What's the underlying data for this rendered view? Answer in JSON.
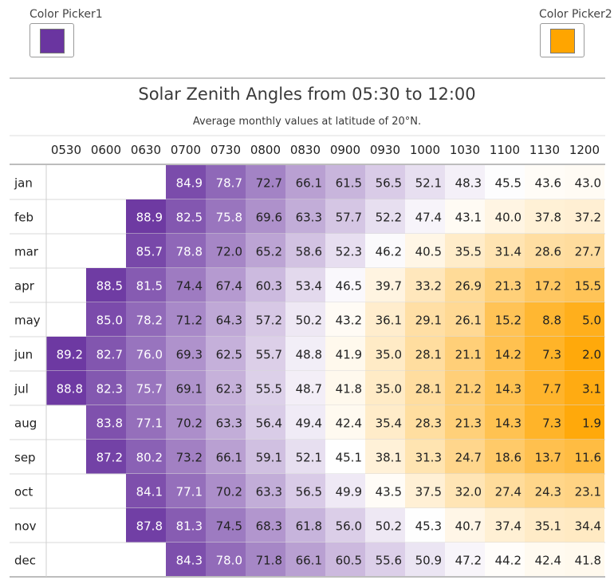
{
  "pickers": [
    {
      "label": "Color Picker1",
      "color": "#6a35a0"
    },
    {
      "label": "Color Picker2",
      "color": "#ffa500"
    }
  ],
  "chart_data": {
    "type": "heatmap",
    "title": "Solar Zenith Angles from 05:30 to 12:00",
    "subtitle": "Average monthly values at latitude of 20°N.",
    "columns": [
      "0530",
      "0600",
      "0630",
      "0700",
      "0730",
      "0800",
      "0830",
      "0900",
      "0930",
      "1000",
      "1030",
      "1100",
      "1130",
      "1200"
    ],
    "rows": [
      "jan",
      "feb",
      "mar",
      "apr",
      "may",
      "jun",
      "jul",
      "aug",
      "sep",
      "oct",
      "nov",
      "dec"
    ],
    "values": [
      [
        null,
        null,
        null,
        84.9,
        78.7,
        72.7,
        66.1,
        61.5,
        56.5,
        52.1,
        48.3,
        45.5,
        43.6,
        43.0
      ],
      [
        null,
        null,
        88.9,
        82.5,
        75.8,
        69.6,
        63.3,
        57.7,
        52.2,
        47.4,
        43.1,
        40.0,
        37.8,
        37.2
      ],
      [
        null,
        null,
        85.7,
        78.8,
        72.0,
        65.2,
        58.6,
        52.3,
        46.2,
        40.5,
        35.5,
        31.4,
        28.6,
        27.7
      ],
      [
        null,
        88.5,
        81.5,
        74.4,
        67.4,
        60.3,
        53.4,
        46.5,
        39.7,
        33.2,
        26.9,
        21.3,
        17.2,
        15.5
      ],
      [
        null,
        85.0,
        78.2,
        71.2,
        64.3,
        57.2,
        50.2,
        43.2,
        36.1,
        29.1,
        26.1,
        15.2,
        8.8,
        5.0
      ],
      [
        89.2,
        82.7,
        76.0,
        69.3,
        62.5,
        55.7,
        48.8,
        41.9,
        35.0,
        28.1,
        21.1,
        14.2,
        7.3,
        2.0
      ],
      [
        88.8,
        82.3,
        75.7,
        69.1,
        62.3,
        55.5,
        48.7,
        41.8,
        35.0,
        28.1,
        21.2,
        14.3,
        7.7,
        3.1
      ],
      [
        null,
        83.8,
        77.1,
        70.2,
        63.3,
        56.4,
        49.4,
        42.4,
        35.4,
        28.3,
        21.3,
        14.3,
        7.3,
        1.9
      ],
      [
        null,
        87.2,
        80.2,
        73.2,
        66.1,
        59.1,
        52.1,
        45.1,
        38.1,
        31.3,
        24.7,
        18.6,
        13.7,
        11.6
      ],
      [
        null,
        null,
        84.1,
        77.1,
        70.2,
        63.3,
        56.5,
        49.9,
        43.5,
        37.5,
        32.0,
        27.4,
        24.3,
        23.1
      ],
      [
        null,
        null,
        87.8,
        81.3,
        74.5,
        68.3,
        61.8,
        56.0,
        50.2,
        45.3,
        40.7,
        37.4,
        35.1,
        34.4
      ],
      [
        null,
        null,
        null,
        84.3,
        78.0,
        71.8,
        66.1,
        60.5,
        55.6,
        50.9,
        47.2,
        44.2,
        42.4,
        41.8
      ]
    ],
    "color_scale": {
      "high_color": "#6a35a0",
      "mid_color": "#ffffff",
      "low_color": "#ffa500",
      "max": 90,
      "mid": 45,
      "min": 0
    }
  }
}
